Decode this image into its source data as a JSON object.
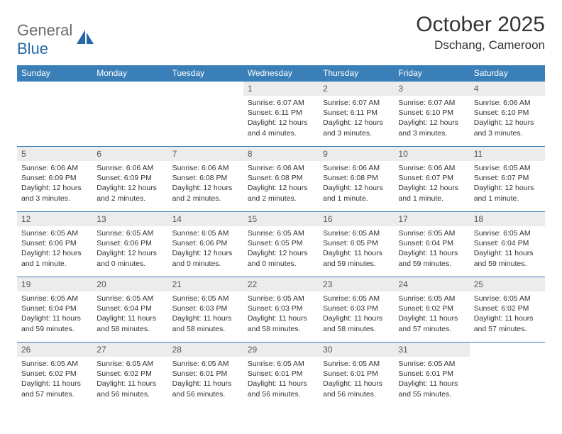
{
  "logo": {
    "text_gray": "General",
    "text_blue": "Blue"
  },
  "header": {
    "month_title": "October 2025",
    "location": "Dschang, Cameroon"
  },
  "colors": {
    "header_bar": "#3a7fb8",
    "daynum_bg": "#ececec",
    "text": "#333333",
    "logo_gray": "#6b6b6b",
    "logo_blue": "#2468a8",
    "white": "#ffffff"
  },
  "days_of_week": [
    "Sunday",
    "Monday",
    "Tuesday",
    "Wednesday",
    "Thursday",
    "Friday",
    "Saturday"
  ],
  "weeks": [
    [
      {
        "n": "",
        "sunrise": "",
        "sunset": "",
        "dl": ""
      },
      {
        "n": "",
        "sunrise": "",
        "sunset": "",
        "dl": ""
      },
      {
        "n": "",
        "sunrise": "",
        "sunset": "",
        "dl": ""
      },
      {
        "n": "1",
        "sunrise": "Sunrise: 6:07 AM",
        "sunset": "Sunset: 6:11 PM",
        "dl": "Daylight: 12 hours and 4 minutes."
      },
      {
        "n": "2",
        "sunrise": "Sunrise: 6:07 AM",
        "sunset": "Sunset: 6:11 PM",
        "dl": "Daylight: 12 hours and 3 minutes."
      },
      {
        "n": "3",
        "sunrise": "Sunrise: 6:07 AM",
        "sunset": "Sunset: 6:10 PM",
        "dl": "Daylight: 12 hours and 3 minutes."
      },
      {
        "n": "4",
        "sunrise": "Sunrise: 6:06 AM",
        "sunset": "Sunset: 6:10 PM",
        "dl": "Daylight: 12 hours and 3 minutes."
      }
    ],
    [
      {
        "n": "5",
        "sunrise": "Sunrise: 6:06 AM",
        "sunset": "Sunset: 6:09 PM",
        "dl": "Daylight: 12 hours and 3 minutes."
      },
      {
        "n": "6",
        "sunrise": "Sunrise: 6:06 AM",
        "sunset": "Sunset: 6:09 PM",
        "dl": "Daylight: 12 hours and 2 minutes."
      },
      {
        "n": "7",
        "sunrise": "Sunrise: 6:06 AM",
        "sunset": "Sunset: 6:08 PM",
        "dl": "Daylight: 12 hours and 2 minutes."
      },
      {
        "n": "8",
        "sunrise": "Sunrise: 6:06 AM",
        "sunset": "Sunset: 6:08 PM",
        "dl": "Daylight: 12 hours and 2 minutes."
      },
      {
        "n": "9",
        "sunrise": "Sunrise: 6:06 AM",
        "sunset": "Sunset: 6:08 PM",
        "dl": "Daylight: 12 hours and 1 minute."
      },
      {
        "n": "10",
        "sunrise": "Sunrise: 6:06 AM",
        "sunset": "Sunset: 6:07 PM",
        "dl": "Daylight: 12 hours and 1 minute."
      },
      {
        "n": "11",
        "sunrise": "Sunrise: 6:05 AM",
        "sunset": "Sunset: 6:07 PM",
        "dl": "Daylight: 12 hours and 1 minute."
      }
    ],
    [
      {
        "n": "12",
        "sunrise": "Sunrise: 6:05 AM",
        "sunset": "Sunset: 6:06 PM",
        "dl": "Daylight: 12 hours and 1 minute."
      },
      {
        "n": "13",
        "sunrise": "Sunrise: 6:05 AM",
        "sunset": "Sunset: 6:06 PM",
        "dl": "Daylight: 12 hours and 0 minutes."
      },
      {
        "n": "14",
        "sunrise": "Sunrise: 6:05 AM",
        "sunset": "Sunset: 6:06 PM",
        "dl": "Daylight: 12 hours and 0 minutes."
      },
      {
        "n": "15",
        "sunrise": "Sunrise: 6:05 AM",
        "sunset": "Sunset: 6:05 PM",
        "dl": "Daylight: 12 hours and 0 minutes."
      },
      {
        "n": "16",
        "sunrise": "Sunrise: 6:05 AM",
        "sunset": "Sunset: 6:05 PM",
        "dl": "Daylight: 11 hours and 59 minutes."
      },
      {
        "n": "17",
        "sunrise": "Sunrise: 6:05 AM",
        "sunset": "Sunset: 6:04 PM",
        "dl": "Daylight: 11 hours and 59 minutes."
      },
      {
        "n": "18",
        "sunrise": "Sunrise: 6:05 AM",
        "sunset": "Sunset: 6:04 PM",
        "dl": "Daylight: 11 hours and 59 minutes."
      }
    ],
    [
      {
        "n": "19",
        "sunrise": "Sunrise: 6:05 AM",
        "sunset": "Sunset: 6:04 PM",
        "dl": "Daylight: 11 hours and 59 minutes."
      },
      {
        "n": "20",
        "sunrise": "Sunrise: 6:05 AM",
        "sunset": "Sunset: 6:04 PM",
        "dl": "Daylight: 11 hours and 58 minutes."
      },
      {
        "n": "21",
        "sunrise": "Sunrise: 6:05 AM",
        "sunset": "Sunset: 6:03 PM",
        "dl": "Daylight: 11 hours and 58 minutes."
      },
      {
        "n": "22",
        "sunrise": "Sunrise: 6:05 AM",
        "sunset": "Sunset: 6:03 PM",
        "dl": "Daylight: 11 hours and 58 minutes."
      },
      {
        "n": "23",
        "sunrise": "Sunrise: 6:05 AM",
        "sunset": "Sunset: 6:03 PM",
        "dl": "Daylight: 11 hours and 58 minutes."
      },
      {
        "n": "24",
        "sunrise": "Sunrise: 6:05 AM",
        "sunset": "Sunset: 6:02 PM",
        "dl": "Daylight: 11 hours and 57 minutes."
      },
      {
        "n": "25",
        "sunrise": "Sunrise: 6:05 AM",
        "sunset": "Sunset: 6:02 PM",
        "dl": "Daylight: 11 hours and 57 minutes."
      }
    ],
    [
      {
        "n": "26",
        "sunrise": "Sunrise: 6:05 AM",
        "sunset": "Sunset: 6:02 PM",
        "dl": "Daylight: 11 hours and 57 minutes."
      },
      {
        "n": "27",
        "sunrise": "Sunrise: 6:05 AM",
        "sunset": "Sunset: 6:02 PM",
        "dl": "Daylight: 11 hours and 56 minutes."
      },
      {
        "n": "28",
        "sunrise": "Sunrise: 6:05 AM",
        "sunset": "Sunset: 6:01 PM",
        "dl": "Daylight: 11 hours and 56 minutes."
      },
      {
        "n": "29",
        "sunrise": "Sunrise: 6:05 AM",
        "sunset": "Sunset: 6:01 PM",
        "dl": "Daylight: 11 hours and 56 minutes."
      },
      {
        "n": "30",
        "sunrise": "Sunrise: 6:05 AM",
        "sunset": "Sunset: 6:01 PM",
        "dl": "Daylight: 11 hours and 56 minutes."
      },
      {
        "n": "31",
        "sunrise": "Sunrise: 6:05 AM",
        "sunset": "Sunset: 6:01 PM",
        "dl": "Daylight: 11 hours and 55 minutes."
      },
      {
        "n": "",
        "sunrise": "",
        "sunset": "",
        "dl": ""
      }
    ]
  ]
}
